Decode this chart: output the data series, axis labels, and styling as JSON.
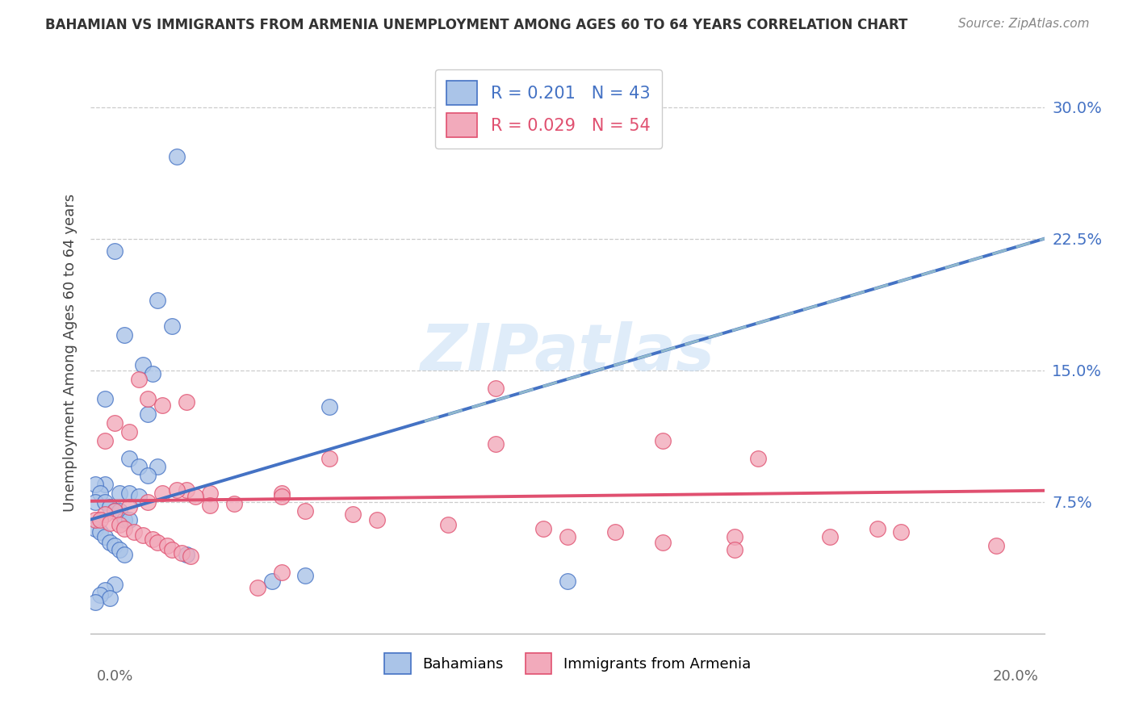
{
  "title": "BAHAMIAN VS IMMIGRANTS FROM ARMENIA UNEMPLOYMENT AMONG AGES 60 TO 64 YEARS CORRELATION CHART",
  "source": "Source: ZipAtlas.com",
  "ylabel": "Unemployment Among Ages 60 to 64 years",
  "xlim": [
    0.0,
    0.2
  ],
  "ylim": [
    0.0,
    0.32
  ],
  "label1": "Bahamians",
  "label2": "Immigrants from Armenia",
  "color1": "#aac4e8",
  "color2": "#f2aabb",
  "line_color1": "#4472c4",
  "line_color2": "#e05070",
  "dashed_color": "#90b8cc",
  "R1": 0.201,
  "N1": 43,
  "R2": 0.029,
  "N2": 54,
  "intercept1": 0.065,
  "slope1": 0.8,
  "intercept2": 0.0755,
  "slope2": 0.03,
  "bahamian_x": [
    0.018,
    0.005,
    0.014,
    0.017,
    0.007,
    0.011,
    0.013,
    0.003,
    0.05,
    0.012,
    0.008,
    0.01,
    0.014,
    0.012,
    0.003,
    0.001,
    0.002,
    0.006,
    0.008,
    0.01,
    0.001,
    0.003,
    0.004,
    0.005,
    0.006,
    0.007,
    0.008,
    0.001,
    0.002,
    0.003,
    0.004,
    0.005,
    0.006,
    0.007,
    0.02,
    0.038,
    0.045,
    0.1,
    0.005,
    0.003,
    0.002,
    0.004,
    0.001
  ],
  "bahamian_y": [
    0.272,
    0.218,
    0.19,
    0.175,
    0.17,
    0.153,
    0.148,
    0.134,
    0.129,
    0.125,
    0.1,
    0.095,
    0.095,
    0.09,
    0.085,
    0.085,
    0.08,
    0.08,
    0.08,
    0.078,
    0.075,
    0.075,
    0.072,
    0.07,
    0.07,
    0.065,
    0.065,
    0.06,
    0.058,
    0.055,
    0.052,
    0.05,
    0.048,
    0.045,
    0.045,
    0.03,
    0.033,
    0.03,
    0.028,
    0.025,
    0.022,
    0.02,
    0.018
  ],
  "armenia_x": [
    0.01,
    0.02,
    0.012,
    0.015,
    0.085,
    0.12,
    0.085,
    0.14,
    0.05,
    0.04,
    0.04,
    0.025,
    0.015,
    0.02,
    0.005,
    0.008,
    0.003,
    0.018,
    0.022,
    0.012,
    0.03,
    0.025,
    0.008,
    0.005,
    0.003,
    0.001,
    0.002,
    0.004,
    0.006,
    0.007,
    0.009,
    0.011,
    0.013,
    0.014,
    0.016,
    0.017,
    0.019,
    0.021,
    0.035,
    0.1,
    0.19,
    0.135,
    0.135,
    0.12,
    0.11,
    0.155,
    0.165,
    0.17,
    0.095,
    0.075,
    0.06,
    0.055,
    0.045,
    0.04
  ],
  "armenia_y": [
    0.145,
    0.132,
    0.134,
    0.13,
    0.14,
    0.11,
    0.108,
    0.1,
    0.1,
    0.08,
    0.078,
    0.08,
    0.08,
    0.082,
    0.12,
    0.115,
    0.11,
    0.082,
    0.078,
    0.075,
    0.074,
    0.073,
    0.072,
    0.07,
    0.068,
    0.065,
    0.065,
    0.063,
    0.062,
    0.06,
    0.058,
    0.056,
    0.054,
    0.052,
    0.05,
    0.048,
    0.046,
    0.044,
    0.026,
    0.055,
    0.05,
    0.055,
    0.048,
    0.052,
    0.058,
    0.055,
    0.06,
    0.058,
    0.06,
    0.062,
    0.065,
    0.068,
    0.07,
    0.035
  ]
}
